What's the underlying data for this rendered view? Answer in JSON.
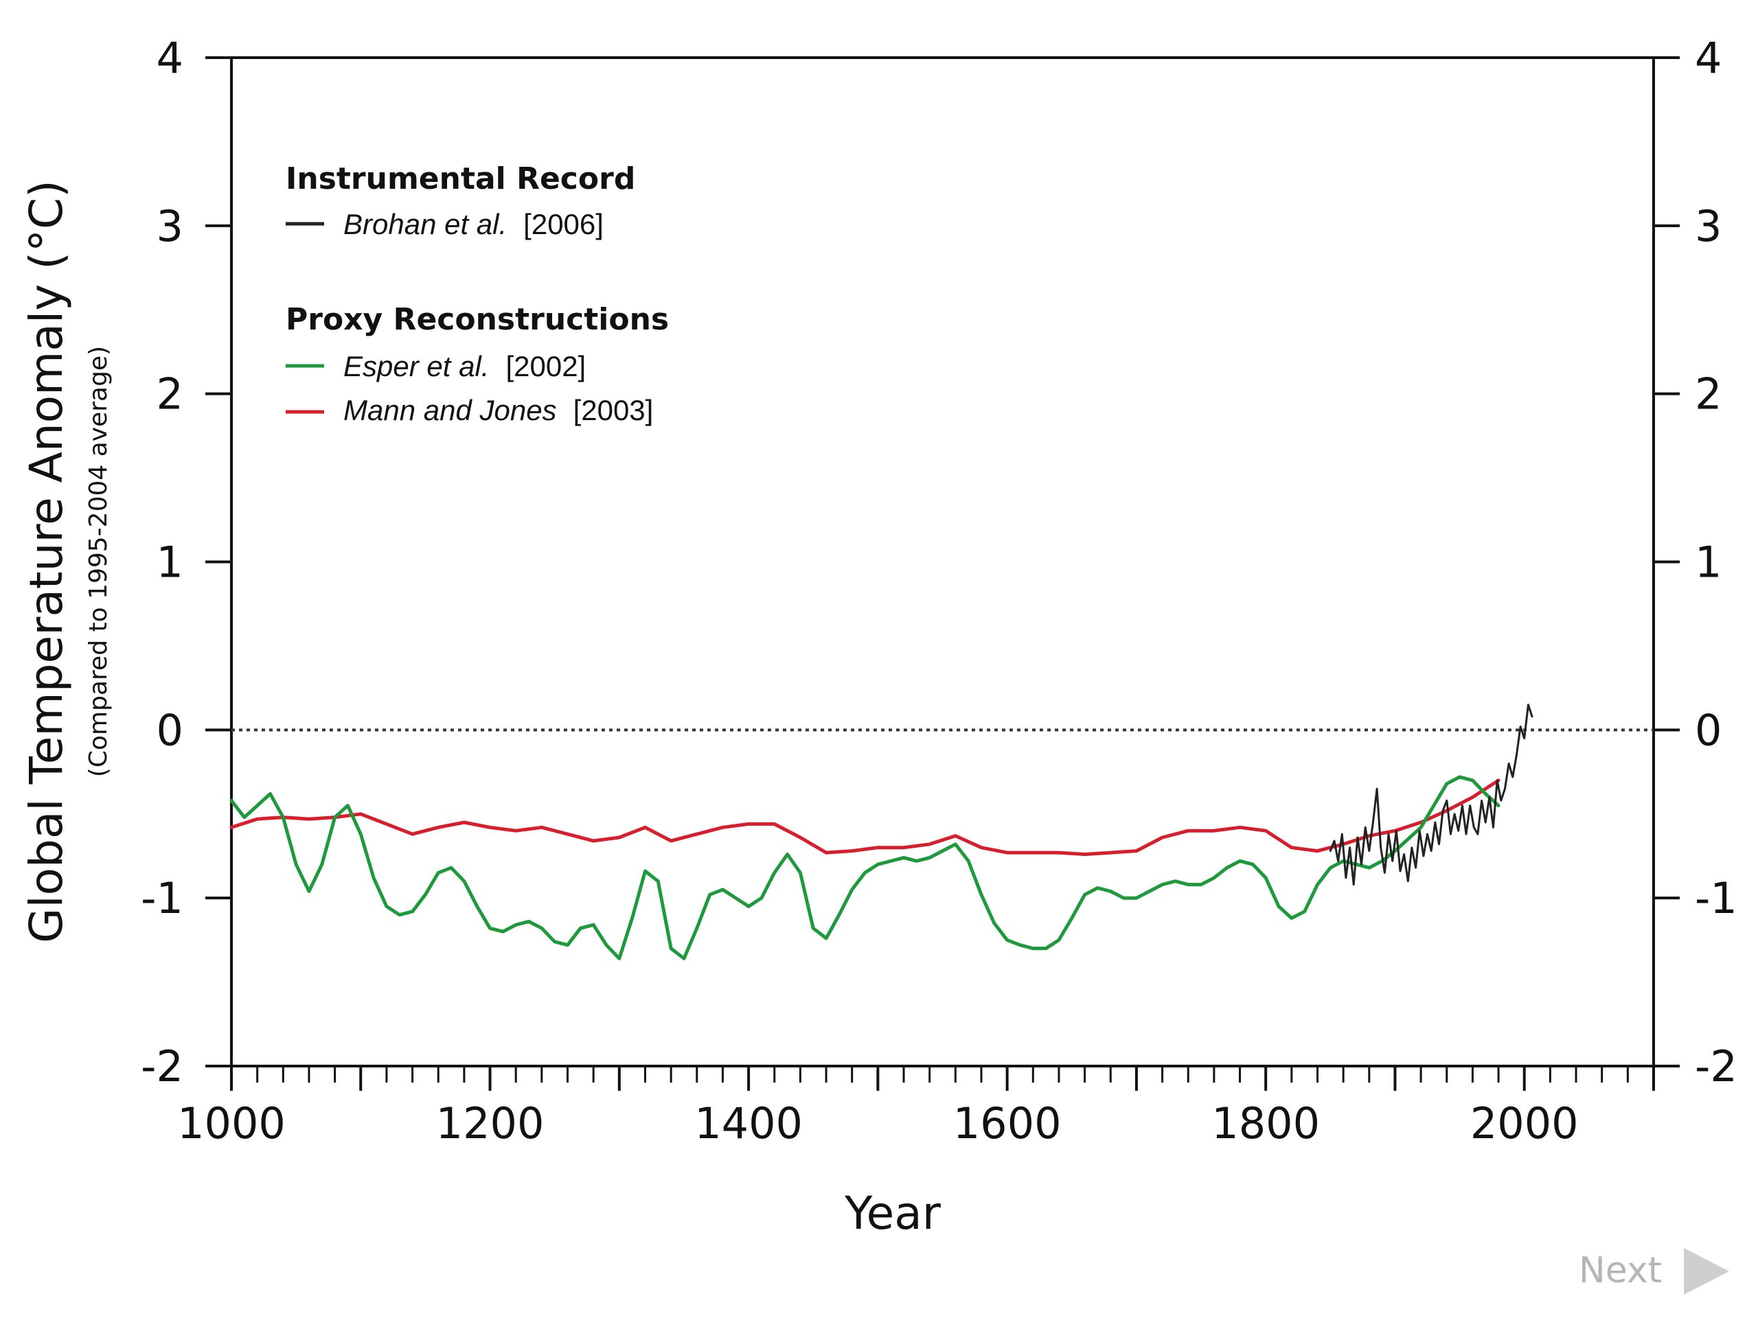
{
  "chart_data": {
    "type": "line",
    "title": "",
    "xlabel": "Year",
    "ylabel": "Global Temperature Anomaly (°C)",
    "ylabel_sub": "(Compared to 1995-2004 average)",
    "xlim": [
      1000,
      2100
    ],
    "ylim": [
      -2,
      4
    ],
    "x_ticks": [
      "1000",
      "1200",
      "1400",
      "1600",
      "1800",
      "2000"
    ],
    "y_ticks": [
      "4",
      "3",
      "2",
      "1",
      "0",
      "-1",
      "-2"
    ],
    "zero_line": {
      "y": 0,
      "style": "dotted"
    },
    "grid": false,
    "legend": {
      "position": "top-left",
      "group1_title": "Instrumental Record",
      "group2_title": "Proxy Reconstructions"
    },
    "series": [
      {
        "name": "Brohan et al.",
        "ref": "[2006]",
        "color": "#222222",
        "x": [
          1850,
          1853,
          1856,
          1859,
          1862,
          1865,
          1868,
          1871,
          1874,
          1877,
          1880,
          1883,
          1886,
          1889,
          1892,
          1895,
          1898,
          1901,
          1904,
          1907,
          1910,
          1913,
          1916,
          1919,
          1922,
          1925,
          1928,
          1931,
          1934,
          1937,
          1940,
          1943,
          1946,
          1949,
          1952,
          1955,
          1958,
          1961,
          1964,
          1967,
          1970,
          1973,
          1976,
          1979,
          1982,
          1985,
          1988,
          1991,
          1994,
          1997,
          2000,
          2003,
          2006
        ],
        "y": [
          -0.72,
          -0.66,
          -0.78,
          -0.62,
          -0.88,
          -0.7,
          -0.92,
          -0.64,
          -0.8,
          -0.58,
          -0.72,
          -0.55,
          -0.35,
          -0.7,
          -0.85,
          -0.62,
          -0.78,
          -0.6,
          -0.84,
          -0.74,
          -0.9,
          -0.7,
          -0.82,
          -0.6,
          -0.75,
          -0.62,
          -0.72,
          -0.55,
          -0.68,
          -0.48,
          -0.42,
          -0.62,
          -0.5,
          -0.6,
          -0.45,
          -0.62,
          -0.45,
          -0.58,
          -0.62,
          -0.42,
          -0.55,
          -0.4,
          -0.58,
          -0.3,
          -0.42,
          -0.35,
          -0.2,
          -0.28,
          -0.15,
          0.02,
          -0.05,
          0.15,
          0.08
        ]
      },
      {
        "name": "Esper et al.",
        "ref": "[2002]",
        "color": "#1e9a3c",
        "x": [
          1000,
          1010,
          1020,
          1030,
          1040,
          1050,
          1060,
          1070,
          1080,
          1090,
          1100,
          1110,
          1120,
          1130,
          1140,
          1150,
          1160,
          1170,
          1180,
          1190,
          1200,
          1210,
          1220,
          1230,
          1240,
          1250,
          1260,
          1270,
          1280,
          1290,
          1300,
          1310,
          1320,
          1330,
          1340,
          1350,
          1360,
          1370,
          1380,
          1390,
          1400,
          1410,
          1420,
          1430,
          1440,
          1450,
          1460,
          1470,
          1480,
          1490,
          1500,
          1510,
          1520,
          1530,
          1540,
          1550,
          1560,
          1570,
          1580,
          1590,
          1600,
          1610,
          1620,
          1630,
          1640,
          1650,
          1660,
          1670,
          1680,
          1690,
          1700,
          1710,
          1720,
          1730,
          1740,
          1750,
          1760,
          1770,
          1780,
          1790,
          1800,
          1810,
          1820,
          1830,
          1840,
          1850,
          1860,
          1870,
          1880,
          1890,
          1900,
          1910,
          1920,
          1930,
          1940,
          1950,
          1960,
          1970,
          1980
        ],
        "y": [
          -0.42,
          -0.52,
          -0.45,
          -0.38,
          -0.52,
          -0.8,
          -0.96,
          -0.8,
          -0.52,
          -0.45,
          -0.62,
          -0.88,
          -1.05,
          -1.1,
          -1.08,
          -0.98,
          -0.85,
          -0.82,
          -0.9,
          -1.05,
          -1.18,
          -1.2,
          -1.16,
          -1.14,
          -1.18,
          -1.26,
          -1.28,
          -1.18,
          -1.16,
          -1.28,
          -1.36,
          -1.12,
          -0.84,
          -0.9,
          -1.3,
          -1.36,
          -1.18,
          -0.98,
          -0.95,
          -1.0,
          -1.05,
          -1.0,
          -0.85,
          -0.74,
          -0.85,
          -1.18,
          -1.24,
          -1.1,
          -0.95,
          -0.85,
          -0.8,
          -0.78,
          -0.76,
          -0.78,
          -0.76,
          -0.72,
          -0.68,
          -0.78,
          -0.98,
          -1.15,
          -1.25,
          -1.28,
          -1.3,
          -1.3,
          -1.25,
          -1.12,
          -0.98,
          -0.94,
          -0.96,
          -1.0,
          -1.0,
          -0.96,
          -0.92,
          -0.9,
          -0.92,
          -0.92,
          -0.88,
          -0.82,
          -0.78,
          -0.8,
          -0.88,
          -1.05,
          -1.12,
          -1.08,
          -0.92,
          -0.82,
          -0.78,
          -0.8,
          -0.82,
          -0.78,
          -0.72,
          -0.65,
          -0.58,
          -0.45,
          -0.32,
          -0.28,
          -0.3,
          -0.38,
          -0.45
        ]
      },
      {
        "name": "Mann and Jones",
        "ref": "[2003]",
        "color": "#d81e2c",
        "x": [
          1000,
          1020,
          1040,
          1060,
          1080,
          1100,
          1120,
          1140,
          1160,
          1180,
          1200,
          1220,
          1240,
          1260,
          1280,
          1300,
          1320,
          1340,
          1360,
          1380,
          1400,
          1420,
          1440,
          1460,
          1480,
          1500,
          1520,
          1540,
          1560,
          1580,
          1600,
          1620,
          1640,
          1660,
          1680,
          1700,
          1720,
          1740,
          1760,
          1780,
          1800,
          1820,
          1840,
          1860,
          1880,
          1900,
          1920,
          1940,
          1960,
          1980
        ],
        "y": [
          -0.58,
          -0.53,
          -0.52,
          -0.53,
          -0.52,
          -0.5,
          -0.56,
          -0.62,
          -0.58,
          -0.55,
          -0.58,
          -0.6,
          -0.58,
          -0.62,
          -0.66,
          -0.64,
          -0.58,
          -0.66,
          -0.62,
          -0.58,
          -0.56,
          -0.56,
          -0.64,
          -0.73,
          -0.72,
          -0.7,
          -0.7,
          -0.68,
          -0.63,
          -0.7,
          -0.73,
          -0.73,
          -0.73,
          -0.74,
          -0.73,
          -0.72,
          -0.64,
          -0.6,
          -0.6,
          -0.58,
          -0.6,
          -0.7,
          -0.72,
          -0.68,
          -0.63,
          -0.6,
          -0.55,
          -0.48,
          -0.4,
          -0.3
        ]
      }
    ]
  },
  "nav": {
    "next_label": "Next"
  }
}
